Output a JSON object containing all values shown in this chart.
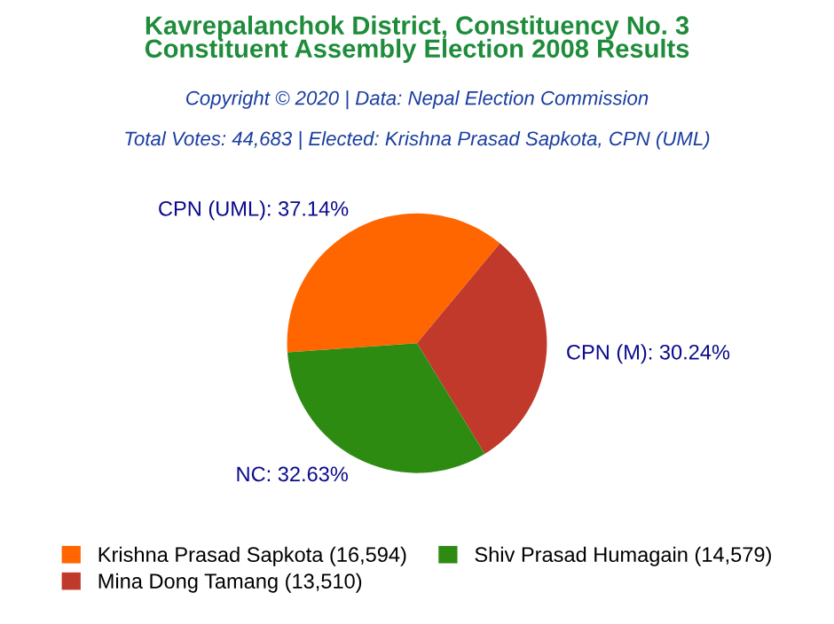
{
  "chart_data": {
    "type": "pie",
    "title": "Kavrepalanchok District, Constituency No. 3\nConstituent Assembly Election 2008 Results",
    "subtitle": "Copyright © 2020 | Data: Nepal Election Commission",
    "annotations": [
      "Total Votes: 44,683 | Elected: Krishna Prasad Sapkota, CPN (UML)"
    ],
    "categories": [
      "Krishna Prasad Sapkota (16,594)",
      "Mina Dong Tamang (13,510)",
      "Shiv Prasad Humagain (14,579)"
    ],
    "values": [
      37.14,
      30.24,
      32.63
    ],
    "value_labels": [
      "CPN (UML): 37.14%",
      "CPN (M): 30.24%",
      "NC: 32.63%"
    ],
    "colors": [
      "#ff6600",
      "#c0392b",
      "#2e8b12"
    ],
    "legend": "bottom"
  }
}
